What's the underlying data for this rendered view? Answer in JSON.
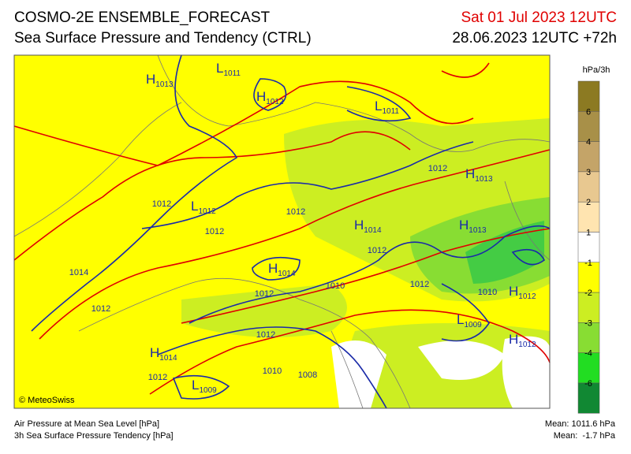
{
  "header": {
    "title": "COSMO-2E ENSEMBLE_FORECAST",
    "subtitle": "Sea Surface Pressure and Tendency (CTRL)",
    "valid_time": "Sat 01 Jul 2023 12UTC",
    "run_time": "28.06.2023 12UTC +72h"
  },
  "map": {
    "centers": [
      {
        "type": "H",
        "value": "1013"
      },
      {
        "type": "L",
        "value": "1011"
      },
      {
        "type": "H",
        "value": "1012"
      },
      {
        "type": "L",
        "value": "1011"
      },
      {
        "type": "H",
        "value": "1013"
      },
      {
        "type": "L",
        "value": "1012"
      },
      {
        "type": "H",
        "value": "1014"
      },
      {
        "type": "H",
        "value": "1013"
      },
      {
        "type": "H",
        "value": "1014"
      },
      {
        "type": "H",
        "value": "1012"
      },
      {
        "type": "L",
        "value": "1009"
      },
      {
        "type": "H",
        "value": "1012"
      },
      {
        "type": "H",
        "value": "1014"
      },
      {
        "type": "L",
        "value": "1009"
      }
    ],
    "isobar_labels": [
      "1012",
      "1012",
      "1012",
      "1012",
      "1012",
      "1014",
      "1012",
      "1010",
      "1012",
      "1012",
      "1010",
      "1012",
      "1010",
      "1008",
      "1012"
    ],
    "copyright": "© MeteoSwiss"
  },
  "colorbar": {
    "unit": "hPa/3h",
    "ticks": [
      6,
      4,
      3,
      2,
      1,
      -1,
      -2,
      -3,
      -4,
      -6
    ],
    "colors": [
      "#6b1a0a",
      "#8c7a22",
      "#a89048",
      "#c4a468",
      "#e8c890",
      "#ffe4b0",
      "#ffffff",
      "#ffff00",
      "#ccee22",
      "#88dd33",
      "#22dd22",
      "#118833"
    ]
  },
  "footer": {
    "left": [
      "Air Pressure at Mean Sea Level [hPa]",
      "3h Sea Surface Pressure Tendency [hPa]"
    ],
    "right": [
      "Mean: 1011.6 hPa",
      "Mean:  -1.7 hPa"
    ]
  }
}
